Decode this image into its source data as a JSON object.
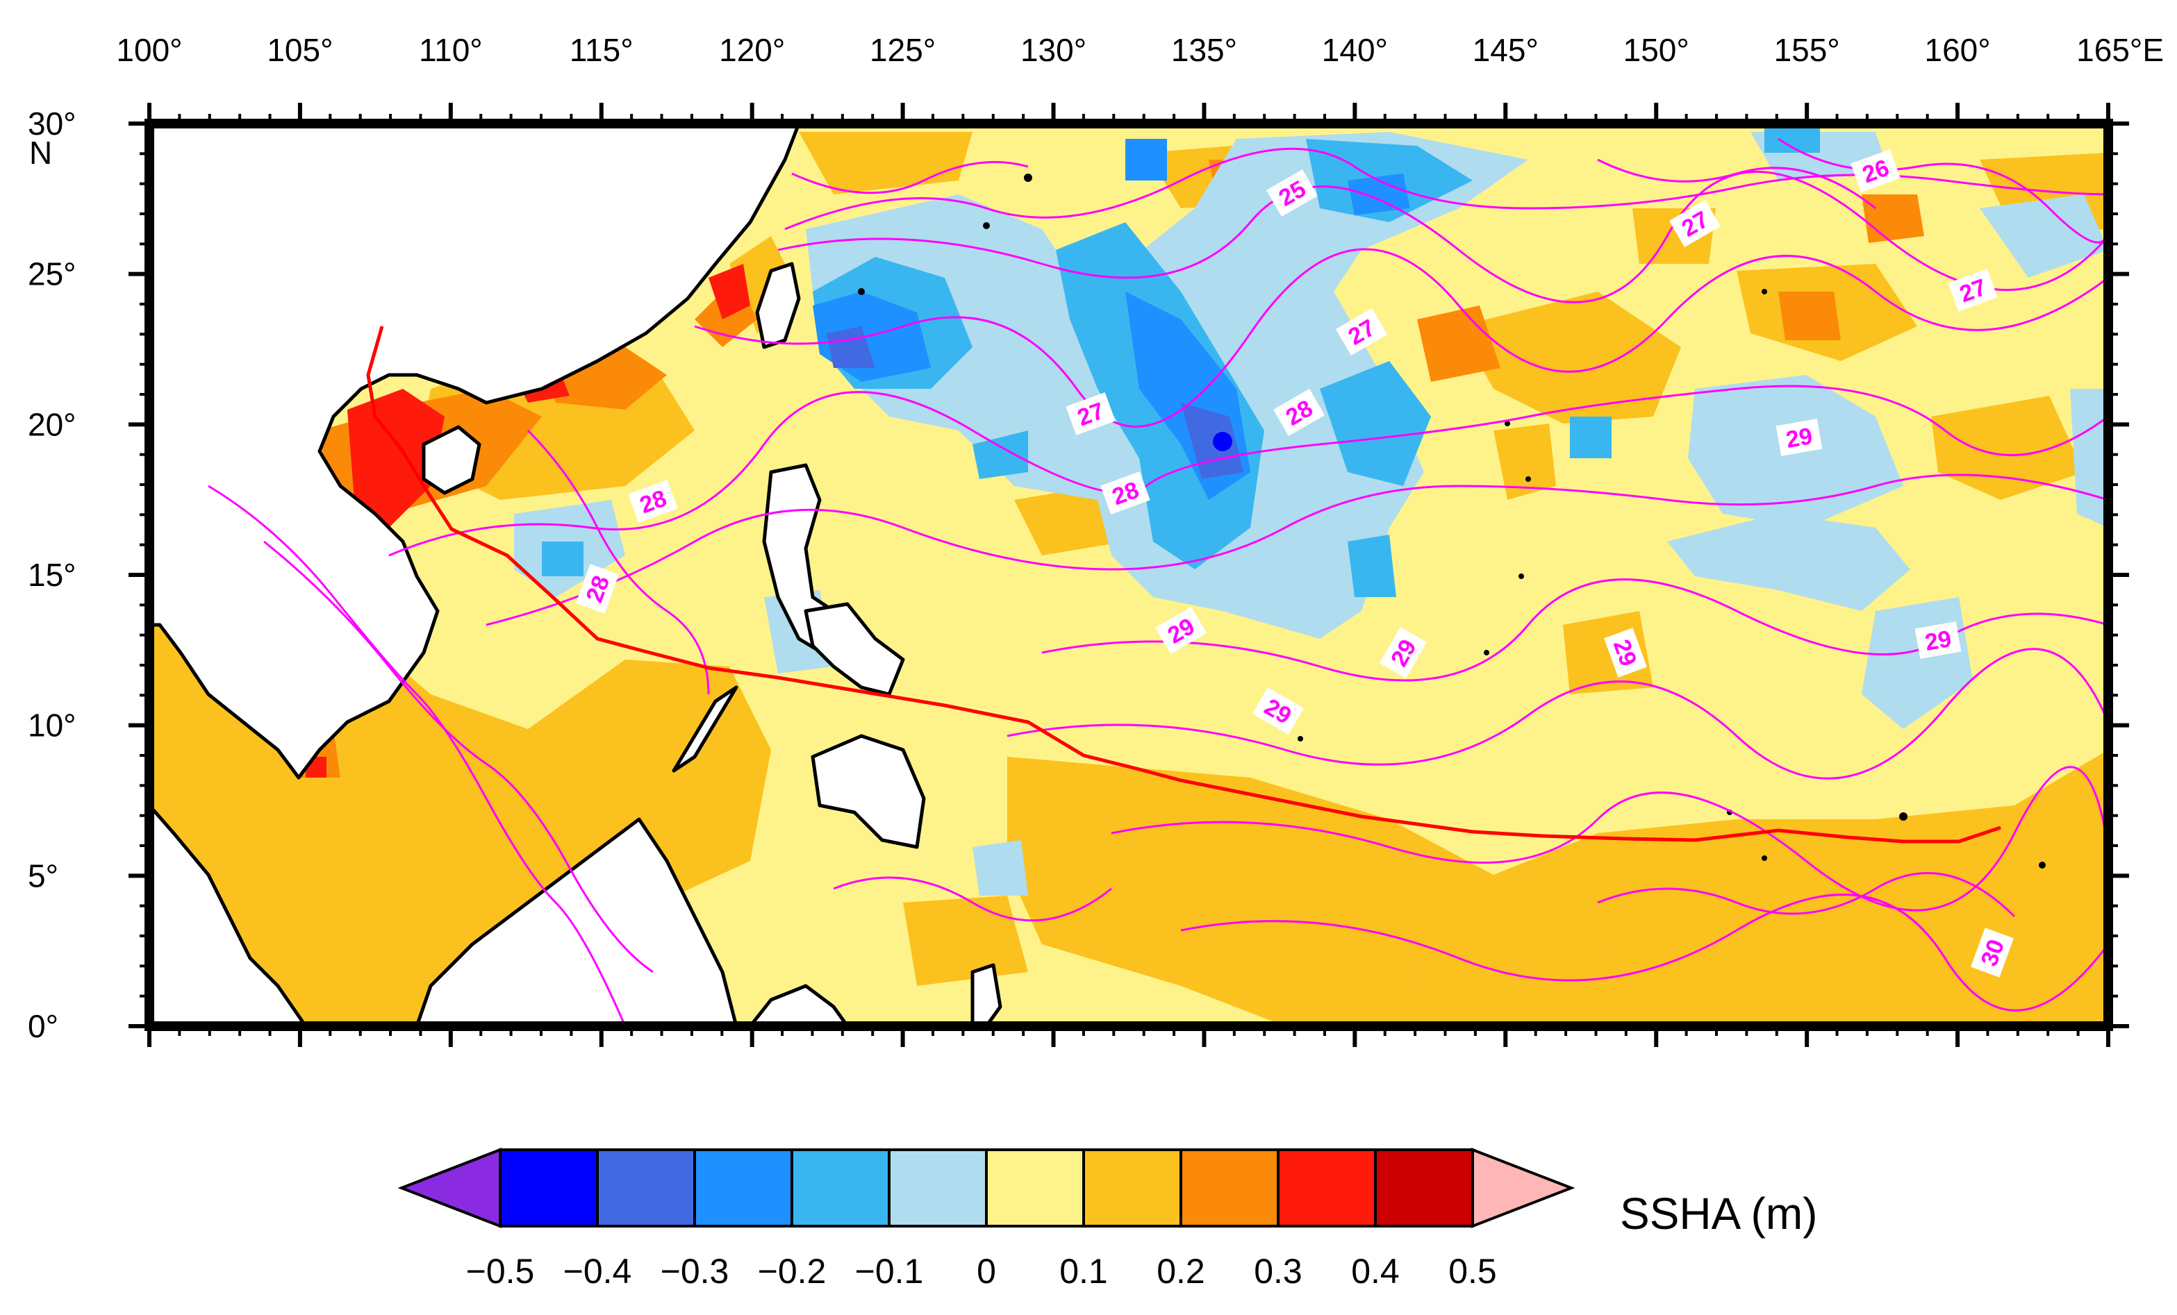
{
  "map": {
    "lon_labels": [
      "100°",
      "105°",
      "110°",
      "115°",
      "120°",
      "125°",
      "130°",
      "135°",
      "140°",
      "145°",
      "150°",
      "155°",
      "160°",
      "165°E"
    ],
    "lat_labels": [
      "0°",
      "5°",
      "10°",
      "15°",
      "20°",
      "25°",
      "30°"
    ],
    "lat_hemisphere": "N",
    "contour_labels": [
      "25",
      "26",
      "27",
      "27",
      "27",
      "27",
      "28",
      "28",
      "28",
      "28",
      "29",
      "29",
      "29",
      "29",
      "29",
      "29",
      "30"
    ]
  },
  "colorbar": {
    "title": "SSHA (m)",
    "tick_labels": [
      "−0.5",
      "−0.4",
      "−0.3",
      "−0.2",
      "−0.1",
      "0",
      "0.1",
      "0.2",
      "0.3",
      "0.4",
      "0.5"
    ],
    "colors": [
      "#0000ff",
      "#4169e1",
      "#1e90ff",
      "#39b6ef",
      "#b0dcef",
      "#fef38a",
      "#fbc11f",
      "#fb8a08",
      "#ff1b0b",
      "#cc0000"
    ],
    "low_extend_color": "#8a2be2",
    "high_extend_color": "#ffb6b6"
  },
  "colors": {
    "contour": "#ff00ff",
    "track": "#ff0000",
    "land": "#ffffff",
    "coast": "#000000"
  }
}
